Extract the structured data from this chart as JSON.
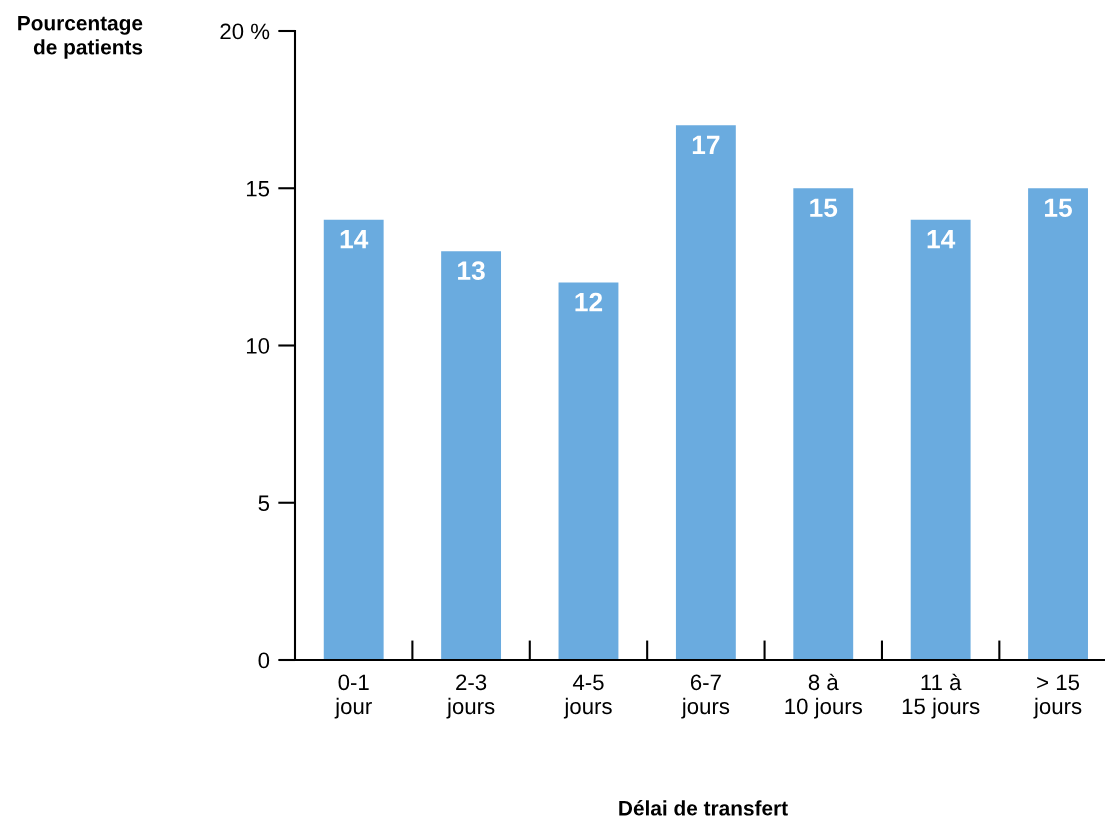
{
  "chart_data": {
    "type": "bar",
    "ylabel": "Pourcentage\nde patients",
    "xlabel": "Délai de transfert",
    "categories": [
      "0-1\njour",
      "2-3\njours",
      "4-5\njours",
      "6-7\njours",
      "8 à\n10 jours",
      "11 à\n15 jours",
      "> 15\njours"
    ],
    "values": [
      14,
      13,
      12,
      17,
      15,
      14,
      15
    ],
    "color": "#6aabdf",
    "data_labels": true,
    "ylim": [
      0,
      20
    ],
    "yticks": [
      0,
      5,
      10,
      15,
      {
        "value": 20,
        "label": "20 %"
      }
    ],
    "grid": false,
    "legend": false
  }
}
